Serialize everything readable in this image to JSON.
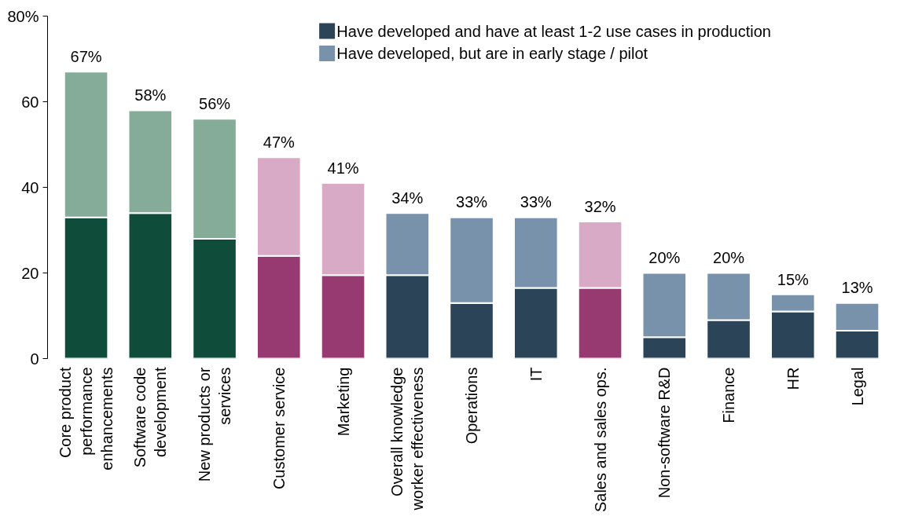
{
  "chart_data": {
    "type": "bar",
    "stacked": true,
    "categories": [
      "Core product\nperformance\nenhancements",
      "Software code\ndevelopment",
      "New products or\nservices",
      "Customer service",
      "Marketing",
      "Overall knowledge\nworker effectiveness",
      "Operations",
      "IT",
      "Sales and sales ops.",
      "Non-software R&D",
      "Finance",
      "HR",
      "Legal"
    ],
    "series": [
      {
        "name": "Have developed and have at least 1-2 use cases in production",
        "color": "#2c4458",
        "colors": [
          "#0f4c3a",
          "#0f4c3a",
          "#0f4c3a",
          "#973a72",
          "#973a72",
          "#2c4458",
          "#2c4458",
          "#2c4458",
          "#973a72",
          "#2c4458",
          "#2c4458",
          "#2c4458",
          "#2c4458"
        ],
        "values": [
          33,
          34,
          28,
          24,
          19.5,
          19.5,
          13,
          16.5,
          16.5,
          5,
          9,
          11,
          6.5
        ]
      },
      {
        "name": "Have developed, but are in early stage / pilot",
        "color": "#7992ab",
        "colors": [
          "#84ac98",
          "#84ac98",
          "#84ac98",
          "#d9aac6",
          "#d9aac6",
          "#7992ab",
          "#7992ab",
          "#7992ab",
          "#d9aac6",
          "#7992ab",
          "#7992ab",
          "#7992ab",
          "#7992ab"
        ],
        "values": [
          34,
          24,
          28,
          23,
          21.5,
          14.5,
          20,
          16.5,
          15.5,
          15,
          11,
          4,
          6.5
        ]
      }
    ],
    "totals": [
      "67%",
      "58%",
      "56%",
      "47%",
      "41%",
      "34%",
      "33%",
      "33%",
      "32%",
      "20%",
      "20%",
      "15%",
      "13%"
    ],
    "ylim": [
      0,
      80
    ],
    "yticks": [
      0,
      20,
      40,
      60,
      {
        "value": 80,
        "label": "80%"
      }
    ],
    "grid": false,
    "legend": "top right"
  }
}
